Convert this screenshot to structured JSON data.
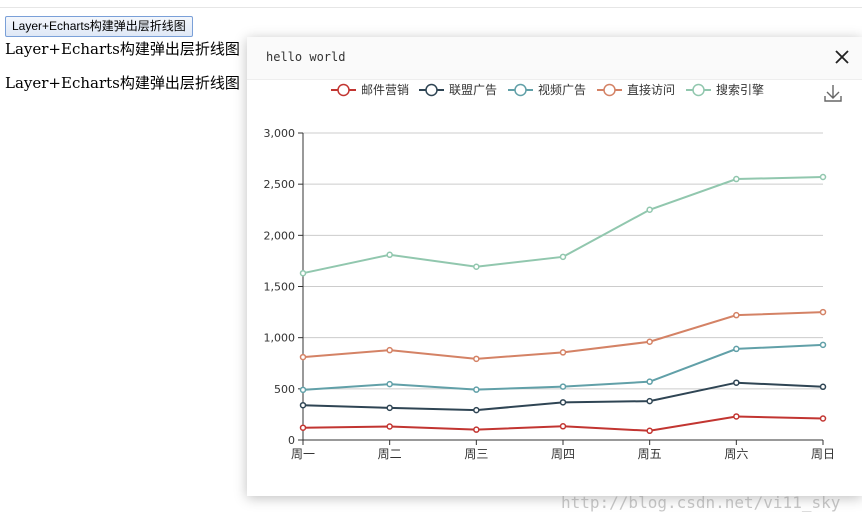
{
  "page": {
    "button_label": "Layer+Echarts构建弹出层折线图",
    "text_lines": [
      "Layer+Echarts构建弹出层折线图",
      "Layer+Echarts构建弹出层折线图"
    ],
    "watermark": "http://blog.csdn.net/vi11_sky"
  },
  "layer": {
    "title": "hello world",
    "close_icon": "close-icon",
    "toolbox_icon": "download-icon"
  },
  "chart_data": {
    "type": "line",
    "categories": [
      "周一",
      "周二",
      "周三",
      "周四",
      "周五",
      "周六",
      "周日"
    ],
    "ylim": [
      0,
      3000
    ],
    "yticks": [
      0,
      500,
      1000,
      1500,
      2000,
      2500,
      3000
    ],
    "ytick_labels": [
      "0",
      "500",
      "1,000",
      "1,500",
      "2,000",
      "2,500",
      "3,000"
    ],
    "stacked": true,
    "grid": "horizontal",
    "legend_position": "top-center",
    "series": [
      {
        "name": "邮件营销",
        "color": "#c23531",
        "values": [
          120,
          132,
          101,
          134,
          90,
          230,
          210
        ]
      },
      {
        "name": "联盟广告",
        "color": "#2f4554",
        "values": [
          340,
          314,
          292,
          368,
          380,
          560,
          520
        ]
      },
      {
        "name": "视频广告",
        "color": "#61a0a8",
        "values": [
          490,
          546,
          492,
          522,
          570,
          890,
          930
        ]
      },
      {
        "name": "直接访问",
        "color": "#d48265",
        "values": [
          810,
          878,
          793,
          856,
          960,
          1220,
          1250
        ]
      },
      {
        "name": "搜索引擎",
        "color": "#91c7ae",
        "values": [
          1630,
          1810,
          1693,
          1790,
          2250,
          2550,
          2570
        ]
      }
    ]
  }
}
